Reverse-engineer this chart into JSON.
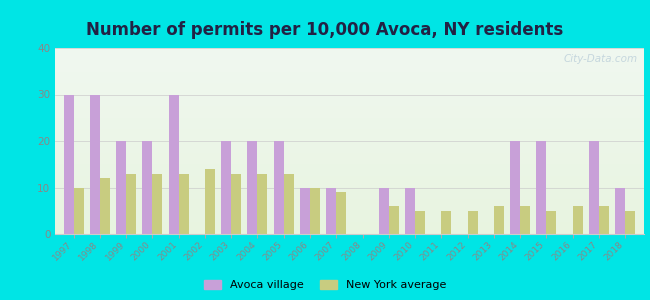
{
  "title": "Number of permits per 10,000 Avoca, NY residents",
  "years": [
    1997,
    1998,
    1999,
    2000,
    2001,
    2002,
    2003,
    2004,
    2005,
    2006,
    2007,
    2008,
    2009,
    2010,
    2011,
    2012,
    2013,
    2014,
    2015,
    2016,
    2017,
    2018
  ],
  "avoca": [
    30,
    30,
    20,
    20,
    30,
    0,
    20,
    20,
    20,
    10,
    10,
    0,
    10,
    10,
    0,
    0,
    0,
    20,
    20,
    0,
    20,
    10
  ],
  "ny_avg": [
    10,
    12,
    13,
    13,
    13,
    14,
    13,
    13,
    13,
    10,
    9,
    0,
    6,
    5,
    5,
    5,
    6,
    6,
    5,
    6,
    6,
    5
  ],
  "avoca_color": "#c8a0d8",
  "ny_color": "#c8cc80",
  "outer_bg": "#00e5e5",
  "plot_bg_top": "#f0f8f0",
  "plot_bg_bottom": "#e8f4e0",
  "ylim": [
    0,
    40
  ],
  "yticks": [
    0,
    10,
    20,
    30,
    40
  ],
  "bar_width": 0.38,
  "legend_labels": [
    "Avoca village",
    "New York average"
  ],
  "watermark": "City-Data.com",
  "title_color": "#222244",
  "tick_color": "#888888",
  "spine_color": "#cccccc"
}
